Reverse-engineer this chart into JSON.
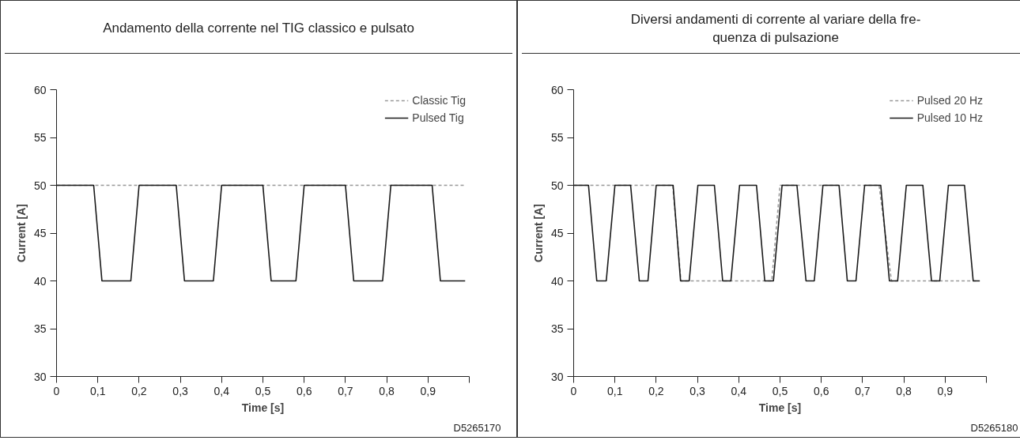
{
  "chart_data": [
    {
      "type": "line",
      "title": "Andamento della corrente nel TIG classico e pulsato",
      "xlabel": "Time [s]",
      "ylabel": "Current [A]",
      "legend": "top right",
      "annotations": [
        "D5265170"
      ],
      "xlim": [
        0,
        1
      ],
      "ylim": [
        30,
        60
      ],
      "xticks": [
        0,
        {
          "value": 0.1,
          "label": "0,1"
        },
        {
          "value": 0.2,
          "label": "0,2"
        },
        {
          "value": 0.3,
          "label": "0,3"
        },
        {
          "value": 0.4,
          "label": "0,4"
        },
        {
          "value": 0.5,
          "label": "0,5"
        },
        {
          "value": 0.6,
          "label": "0,6"
        },
        {
          "value": 0.7,
          "label": "0,7"
        },
        {
          "value": 0.8,
          "label": "0,8"
        },
        {
          "value": 0.9,
          "label": "0,9"
        },
        {
          "value": 1,
          "label": null
        }
      ],
      "yticks": [
        30,
        35,
        40,
        45,
        50,
        55,
        60
      ],
      "series": [
        {
          "name": "Classic Tig",
          "color": "#999999",
          "line_style": "dashed",
          "x": [
            0,
            0.99
          ],
          "values": [
            50,
            50
          ]
        },
        {
          "name": "Pulsed Tig",
          "color": "#1a1a1a",
          "line_style": "solid",
          "x": [
            0,
            0.09,
            0.11,
            0.18,
            0.2,
            0.29,
            0.31,
            0.38,
            0.4,
            0.5,
            0.52,
            0.58,
            0.6,
            0.7,
            0.72,
            0.79,
            0.81,
            0.91,
            0.93,
            0.99
          ],
          "values": [
            50,
            50,
            40,
            40,
            50,
            50,
            40,
            40,
            50,
            50,
            40,
            40,
            50,
            50,
            40,
            40,
            50,
            50,
            40,
            40
          ]
        }
      ]
    },
    {
      "type": "line",
      "title": "Diversi andamenti di corrente al variare della fre-\nquenza di pulsazione",
      "xlabel": "Time [s]",
      "ylabel": "Current [A]",
      "legend": "top right",
      "annotations": [
        "D5265180"
      ],
      "xlim": [
        0,
        1
      ],
      "ylim": [
        30,
        60
      ],
      "xticks": [
        0,
        {
          "value": 0.1,
          "label": "0,1"
        },
        {
          "value": 0.2,
          "label": "0,2"
        },
        {
          "value": 0.3,
          "label": "0,3"
        },
        {
          "value": 0.4,
          "label": "0,4"
        },
        {
          "value": 0.5,
          "label": "0,5"
        },
        {
          "value": 0.6,
          "label": "0,6"
        },
        {
          "value": 0.7,
          "label": "0,7"
        },
        {
          "value": 0.8,
          "label": "0,8"
        },
        {
          "value": 0.9,
          "label": "0,9"
        },
        {
          "value": 1,
          "label": null
        }
      ],
      "yticks": [
        30,
        35,
        40,
        45,
        50,
        55,
        60
      ],
      "series": [
        {
          "name": "Pulsed 20 Hz",
          "color": "#999999",
          "line_style": "dashed",
          "x": [
            0,
            0.24,
            0.26,
            0.48,
            0.5,
            0.74,
            0.77,
            0.98
          ],
          "values": [
            50,
            50,
            40,
            40,
            50,
            50,
            40,
            40
          ]
        },
        {
          "name": "Pulsed 10 Hz",
          "color": "#1a1a1a",
          "line_style": "solid",
          "x": [
            0,
            0.036,
            0.056,
            0.079,
            0.1,
            0.138,
            0.159,
            0.18,
            0.2,
            0.241,
            0.259,
            0.28,
            0.301,
            0.341,
            0.361,
            0.381,
            0.402,
            0.443,
            0.463,
            0.484,
            0.505,
            0.541,
            0.563,
            0.583,
            0.604,
            0.643,
            0.663,
            0.684,
            0.705,
            0.744,
            0.765,
            0.785,
            0.806,
            0.846,
            0.867,
            0.887,
            0.908,
            0.947,
            0.968,
            0.984
          ],
          "values": [
            50,
            50,
            40,
            40,
            50,
            50,
            40,
            40,
            50,
            50,
            40,
            40,
            50,
            50,
            40,
            40,
            50,
            50,
            40,
            40,
            50,
            50,
            40,
            40,
            50,
            50,
            40,
            40,
            50,
            50,
            40,
            40,
            50,
            50,
            40,
            40,
            50,
            50,
            40,
            40
          ]
        }
      ]
    }
  ]
}
